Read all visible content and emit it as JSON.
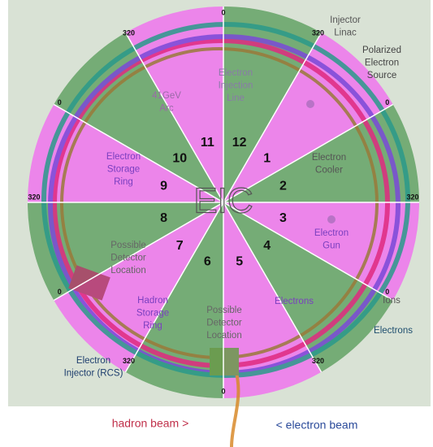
{
  "title_mark": "EIC",
  "sectors": [
    {
      "label": "12"
    },
    {
      "label": "1"
    },
    {
      "label": "2"
    },
    {
      "label": "3"
    },
    {
      "label": "4"
    },
    {
      "label": "5"
    },
    {
      "label": "6"
    },
    {
      "label": "7"
    },
    {
      "label": "8"
    },
    {
      "label": "9"
    },
    {
      "label": "10"
    },
    {
      "label": "11"
    }
  ],
  "boundaries": [
    {
      "label": "0"
    },
    {
      "label": "320"
    },
    {
      "label": "0"
    },
    {
      "label": "320"
    },
    {
      "label": "0"
    },
    {
      "label": "320"
    },
    {
      "label": "0"
    },
    {
      "label": "320"
    },
    {
      "label": "0"
    },
    {
      "label": "320"
    },
    {
      "label": "0"
    },
    {
      "label": "320"
    }
  ],
  "annotations": [
    {
      "lines": [
        "Injector",
        "Linac"
      ]
    },
    {
      "lines": [
        "Polarized",
        "Electron",
        "Source"
      ]
    },
    {
      "lines": [
        "Electron",
        "Injection",
        "Line"
      ]
    },
    {
      "lines": [
        "41GeV",
        "Arc"
      ]
    },
    {
      "lines": [
        "Electron",
        "Storage",
        "Ring"
      ]
    },
    {
      "lines": [
        "Electron",
        "Cooler"
      ]
    },
    {
      "lines": [
        "Electron",
        "Gun"
      ]
    },
    {
      "lines": [
        "Possible",
        "Detector",
        "Location"
      ]
    },
    {
      "lines": [
        "Hadron",
        "Storage",
        "Ring"
      ]
    },
    {
      "lines": [
        "Possible",
        "Detector",
        "Location"
      ]
    },
    {
      "lines": [
        "Electrons"
      ]
    },
    {
      "lines": [
        "Ions"
      ]
    },
    {
      "lines": [
        "Electrons"
      ]
    },
    {
      "lines": [
        "Electron",
        "Injector (RCS)"
      ]
    }
  ],
  "legend": {
    "hadron": "hadron beam >",
    "electron": "< electron beam"
  }
}
